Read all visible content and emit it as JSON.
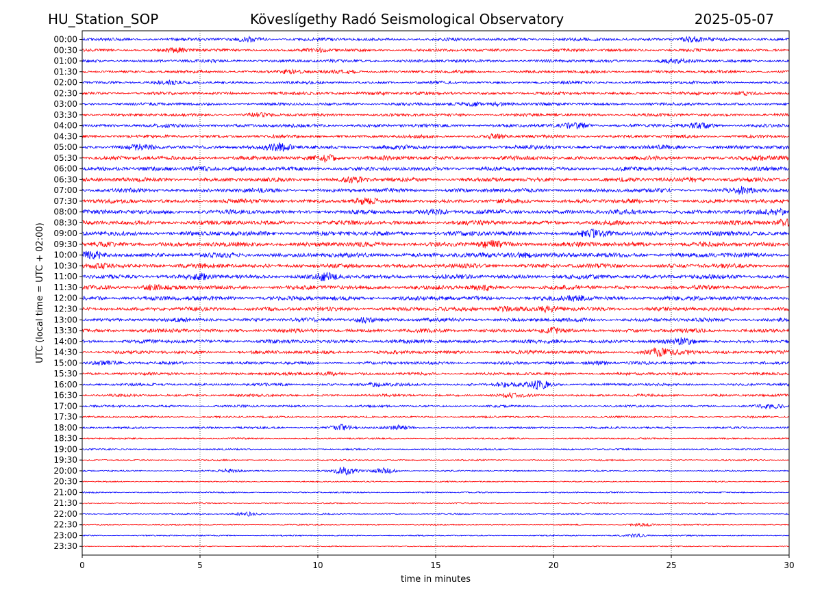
{
  "header": {
    "station": "HU_Station_SOP",
    "observatory": "Köveslígethy Radó Seismological Observatory",
    "date": "2025-05-07"
  },
  "chart_data": {
    "type": "line",
    "title": "Köveslígethy Radó Seismological Observatory",
    "xlabel": "time in minutes",
    "ylabel": "UTC (local time = UTC + 02:00)",
    "xlim": [
      0,
      30
    ],
    "x_ticks": [
      "0",
      "5",
      "10",
      "15",
      "20",
      "25",
      "30"
    ],
    "grid": "vertical dotted lines at 5-minute ticks",
    "colors": {
      "even_rows": "#0000ff",
      "odd_rows": "#ff0000"
    },
    "rows": [
      {
        "label": "00:00",
        "amplitude": 0.45,
        "bursts": [
          {
            "x": 7.2,
            "a": 0.6
          },
          {
            "x": 25.8,
            "a": 0.7
          }
        ]
      },
      {
        "label": "00:30",
        "amplitude": 0.42,
        "bursts": [
          {
            "x": 4.0,
            "a": 0.6
          },
          {
            "x": 10.0,
            "a": 0.4
          }
        ]
      },
      {
        "label": "01:00",
        "amplitude": 0.45,
        "bursts": [
          {
            "x": 25.0,
            "a": 0.5
          }
        ]
      },
      {
        "label": "01:30",
        "amplitude": 0.42,
        "bursts": [
          {
            "x": 8.8,
            "a": 0.5
          },
          {
            "x": 11.2,
            "a": 0.4
          }
        ]
      },
      {
        "label": "02:00",
        "amplitude": 0.42,
        "bursts": [
          {
            "x": 3.5,
            "a": 0.4
          }
        ]
      },
      {
        "label": "02:30",
        "amplitude": 0.44,
        "bursts": [
          {
            "x": 12.5,
            "a": 0.4
          },
          {
            "x": 28.0,
            "a": 0.4
          }
        ]
      },
      {
        "label": "03:00",
        "amplitude": 0.43,
        "bursts": [
          {
            "x": 16.5,
            "a": 0.5
          },
          {
            "x": 17.8,
            "a": 0.5
          }
        ]
      },
      {
        "label": "03:30",
        "amplitude": 0.43,
        "bursts": [
          {
            "x": 7.5,
            "a": 0.4
          }
        ]
      },
      {
        "label": "04:00",
        "amplitude": 0.5,
        "bursts": [
          {
            "x": 21.0,
            "a": 0.8
          },
          {
            "x": 26.2,
            "a": 0.6
          }
        ]
      },
      {
        "label": "04:30",
        "amplitude": 0.47,
        "bursts": [
          {
            "x": 17.5,
            "a": 0.5
          }
        ]
      },
      {
        "label": "05:00",
        "amplitude": 0.6,
        "bursts": [
          {
            "x": 8.4,
            "a": 0.8
          },
          {
            "x": 2.5,
            "a": 0.5
          }
        ]
      },
      {
        "label": "05:30",
        "amplitude": 0.6,
        "bursts": [
          {
            "x": 10.3,
            "a": 0.9
          },
          {
            "x": 28.5,
            "a": 0.6
          }
        ]
      },
      {
        "label": "06:00",
        "amplitude": 0.6,
        "bursts": [
          {
            "x": 5.0,
            "a": 0.6
          }
        ]
      },
      {
        "label": "06:30",
        "amplitude": 0.6,
        "bursts": [
          {
            "x": 11.5,
            "a": 0.6
          },
          {
            "x": 26.0,
            "a": 0.5
          }
        ]
      },
      {
        "label": "07:00",
        "amplitude": 0.6,
        "bursts": [
          {
            "x": 28.0,
            "a": 0.8
          }
        ]
      },
      {
        "label": "07:30",
        "amplitude": 0.6,
        "bursts": [
          {
            "x": 12.0,
            "a": 0.6
          }
        ]
      },
      {
        "label": "08:00",
        "amplitude": 0.65,
        "bursts": [
          {
            "x": 15.0,
            "a": 0.6
          },
          {
            "x": 29.5,
            "a": 0.7
          }
        ]
      },
      {
        "label": "08:30",
        "amplitude": 0.65,
        "bursts": [
          {
            "x": 29.8,
            "a": 0.9
          }
        ]
      },
      {
        "label": "09:00",
        "amplitude": 0.7,
        "bursts": [
          {
            "x": 21.7,
            "a": 0.8
          }
        ]
      },
      {
        "label": "09:30",
        "amplitude": 0.7,
        "bursts": [
          {
            "x": 17.3,
            "a": 0.7
          }
        ]
      },
      {
        "label": "10:00",
        "amplitude": 0.7,
        "bursts": [
          {
            "x": 18.7,
            "a": 0.7
          },
          {
            "x": 0.5,
            "a": 0.6
          }
        ]
      },
      {
        "label": "10:30",
        "amplitude": 0.65,
        "bursts": [
          {
            "x": 0.8,
            "a": 0.6
          }
        ]
      },
      {
        "label": "11:00",
        "amplitude": 0.65,
        "bursts": [
          {
            "x": 10.4,
            "a": 0.8
          },
          {
            "x": 5.0,
            "a": 0.6
          }
        ]
      },
      {
        "label": "11:30",
        "amplitude": 0.62,
        "bursts": [
          {
            "x": 17.0,
            "a": 0.7
          },
          {
            "x": 3.0,
            "a": 0.6
          }
        ]
      },
      {
        "label": "12:00",
        "amplitude": 0.65,
        "bursts": [
          {
            "x": 21.0,
            "a": 0.6
          }
        ]
      },
      {
        "label": "12:30",
        "amplitude": 0.6,
        "bursts": [
          {
            "x": 18.0,
            "a": 0.7
          },
          {
            "x": 19.8,
            "a": 0.6
          }
        ]
      },
      {
        "label": "13:00",
        "amplitude": 0.55,
        "bursts": [
          {
            "x": 12.0,
            "a": 0.7
          }
        ]
      },
      {
        "label": "13:30",
        "amplitude": 0.55,
        "bursts": [
          {
            "x": 20.0,
            "a": 0.5
          }
        ]
      },
      {
        "label": "14:00",
        "amplitude": 0.55,
        "bursts": [
          {
            "x": 25.5,
            "a": 0.7
          }
        ]
      },
      {
        "label": "14:30",
        "amplitude": 0.5,
        "bursts": [
          {
            "x": 24.4,
            "a": 1.0
          },
          {
            "x": 25.5,
            "a": 0.6
          }
        ]
      },
      {
        "label": "15:00",
        "amplitude": 0.45,
        "bursts": [
          {
            "x": 0.9,
            "a": 0.5
          },
          {
            "x": 22.0,
            "a": 0.5
          }
        ]
      },
      {
        "label": "15:30",
        "amplitude": 0.42,
        "bursts": [
          {
            "x": 10.5,
            "a": 0.5
          }
        ]
      },
      {
        "label": "16:00",
        "amplitude": 0.4,
        "bursts": [
          {
            "x": 19.4,
            "a": 1.1
          },
          {
            "x": 18.0,
            "a": 0.6
          },
          {
            "x": 12.5,
            "a": 0.5
          }
        ]
      },
      {
        "label": "16:30",
        "amplitude": 0.38,
        "bursts": [
          {
            "x": 18.2,
            "a": 0.5
          }
        ]
      },
      {
        "label": "17:00",
        "amplitude": 0.32,
        "bursts": [
          {
            "x": 29.2,
            "a": 0.6
          }
        ]
      },
      {
        "label": "17:30",
        "amplitude": 0.28,
        "bursts": []
      },
      {
        "label": "18:00",
        "amplitude": 0.3,
        "bursts": [
          {
            "x": 11.0,
            "a": 0.8
          },
          {
            "x": 13.5,
            "a": 0.6
          }
        ]
      },
      {
        "label": "18:30",
        "amplitude": 0.22,
        "bursts": []
      },
      {
        "label": "19:00",
        "amplitude": 0.22,
        "bursts": []
      },
      {
        "label": "19:30",
        "amplitude": 0.2,
        "bursts": []
      },
      {
        "label": "20:00",
        "amplitude": 0.2,
        "bursts": [
          {
            "x": 11.2,
            "a": 1.2
          },
          {
            "x": 12.8,
            "a": 0.8
          },
          {
            "x": 6.2,
            "a": 0.6
          }
        ]
      },
      {
        "label": "20:30",
        "amplitude": 0.18,
        "bursts": []
      },
      {
        "label": "21:00",
        "amplitude": 0.2,
        "bursts": []
      },
      {
        "label": "21:30",
        "amplitude": 0.16,
        "bursts": []
      },
      {
        "label": "22:00",
        "amplitude": 0.2,
        "bursts": [
          {
            "x": 7.0,
            "a": 0.6
          }
        ]
      },
      {
        "label": "22:30",
        "amplitude": 0.16,
        "bursts": [
          {
            "x": 23.8,
            "a": 0.5
          }
        ]
      },
      {
        "label": "23:00",
        "amplitude": 0.18,
        "bursts": [
          {
            "x": 23.5,
            "a": 0.5
          }
        ]
      },
      {
        "label": "23:30",
        "amplitude": 0.16,
        "bursts": []
      }
    ]
  }
}
